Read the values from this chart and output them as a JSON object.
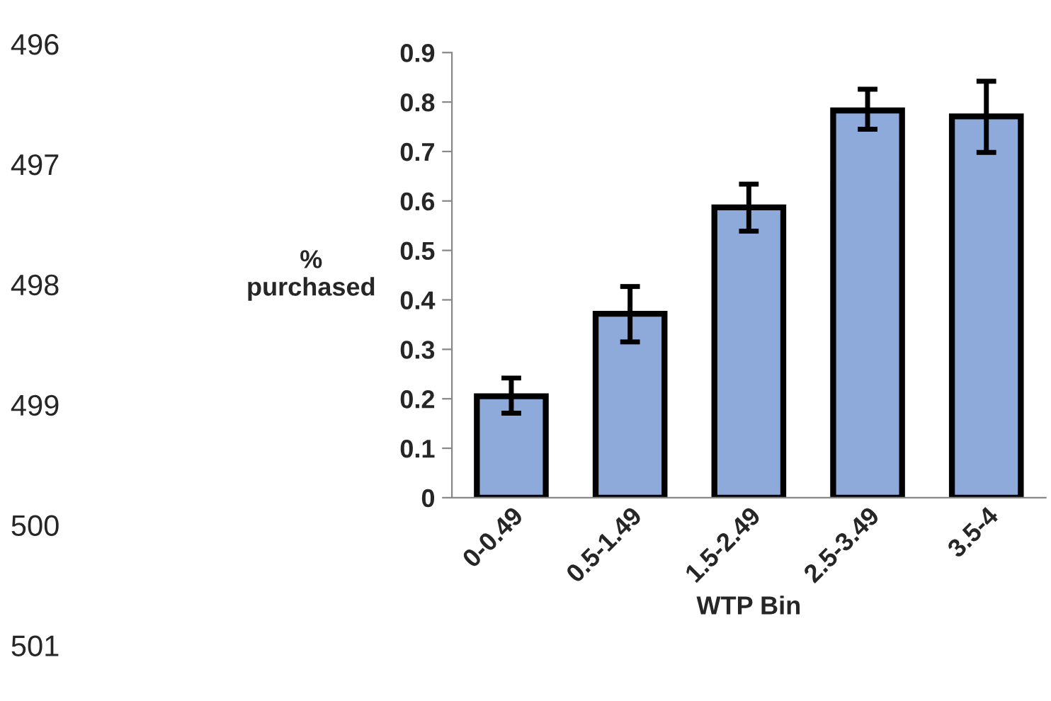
{
  "chart_data": {
    "type": "bar",
    "categories": [
      "0-0.49",
      "0.5-1.49",
      "1.5-2.49",
      "2.5-3.49",
      "3.5-4"
    ],
    "values": [
      0.205,
      0.372,
      0.587,
      0.783,
      0.771
    ],
    "errors": [
      [
        0.171,
        0.242
      ],
      [
        0.315,
        0.427
      ],
      [
        0.539,
        0.634
      ],
      [
        0.745,
        0.826
      ],
      [
        0.698,
        0.842
      ]
    ],
    "color": "#8eaadb",
    "xlabel": "WTP Bin",
    "ylabel": "%\npurchased",
    "ylim": [
      0,
      0.9
    ],
    "yticks": [
      0,
      0.1,
      0.2,
      0.3,
      0.4,
      0.5,
      0.6,
      0.7,
      0.8,
      0.9
    ],
    "grid": false,
    "legend": false,
    "annotations": [
      "496",
      "497",
      "498",
      "499",
      "500",
      "501"
    ]
  }
}
